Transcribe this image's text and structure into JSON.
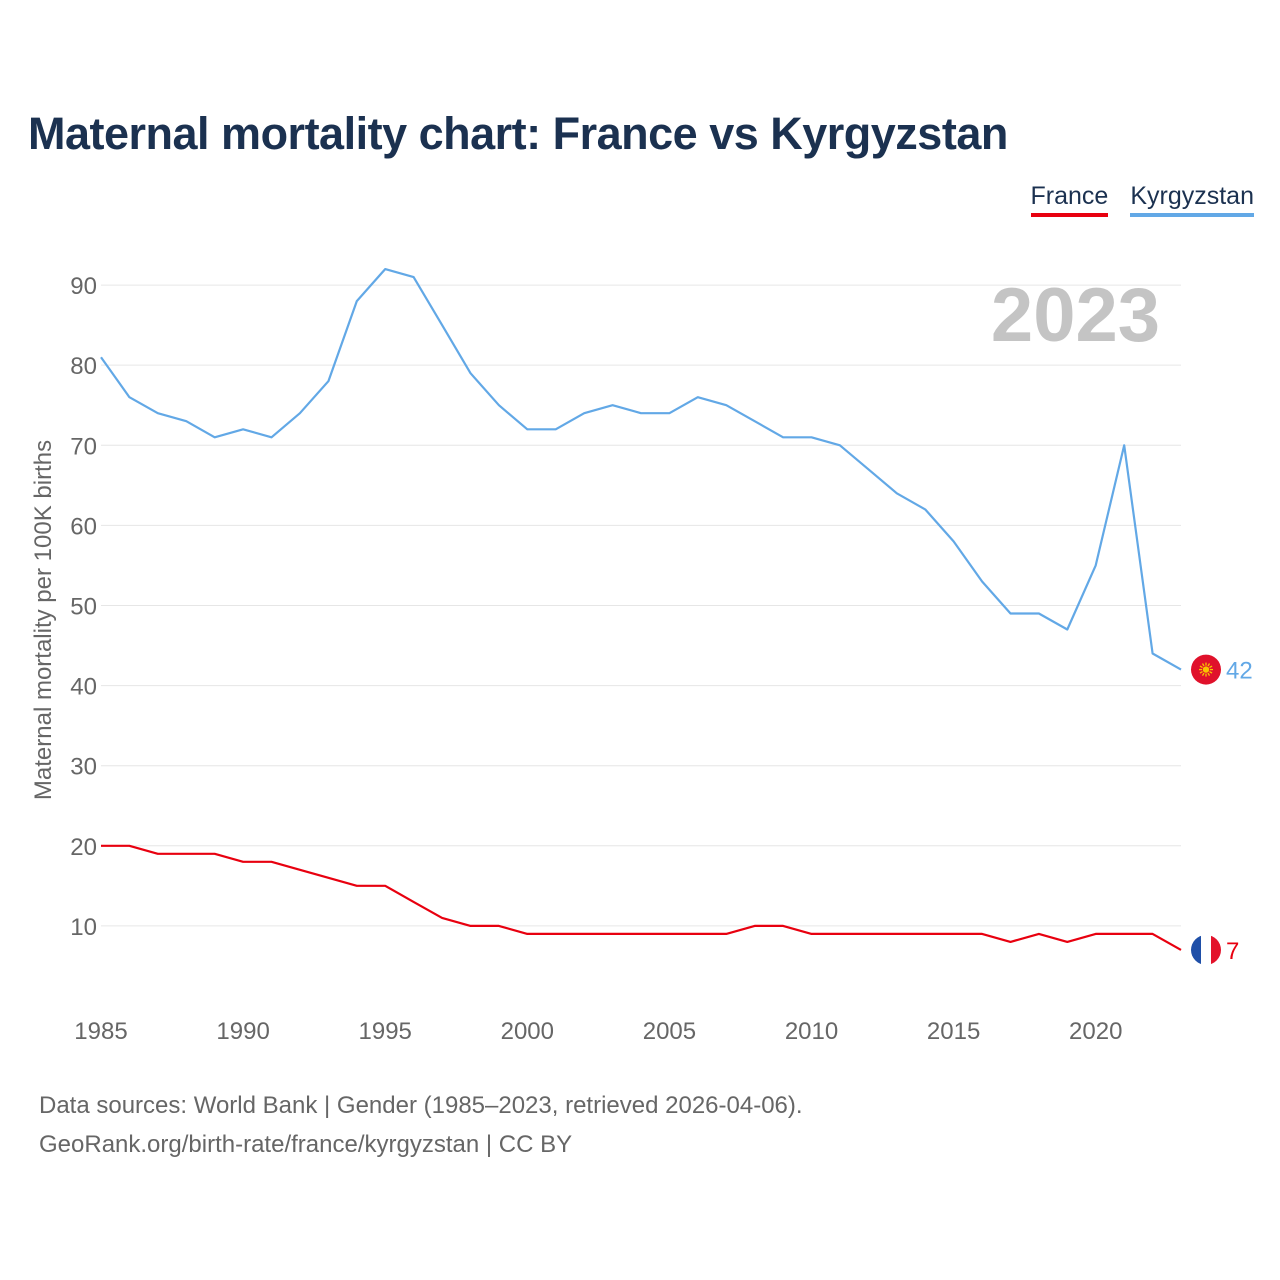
{
  "title": "Maternal mortality chart: France vs Kyrgyzstan",
  "footer": {
    "line1": "Data sources: World Bank | Gender (1985–2023, retrieved 2026-04-06).",
    "line2": "GeoRank.org/birth-rate/france/kyrgyzstan | CC BY"
  },
  "chart_data": {
    "type": "line",
    "title": "Maternal mortality chart: France vs Kyrgyzstan",
    "xlabel": "",
    "ylabel": "Maternal mortality per 100K births",
    "year_label": "2023",
    "xlim": [
      1985,
      2023
    ],
    "ylim": [
      0,
      97
    ],
    "x_ticks": [
      1985,
      1990,
      1995,
      2000,
      2005,
      2010,
      2015,
      2020
    ],
    "y_ticks": [
      10,
      20,
      30,
      40,
      50,
      60,
      70,
      80,
      90
    ],
    "grid": true,
    "legend_position": "top-right",
    "x": [
      1985,
      1986,
      1987,
      1988,
      1989,
      1990,
      1991,
      1992,
      1993,
      1994,
      1995,
      1996,
      1997,
      1998,
      1999,
      2000,
      2001,
      2002,
      2003,
      2004,
      2005,
      2006,
      2007,
      2008,
      2009,
      2010,
      2011,
      2012,
      2013,
      2014,
      2015,
      2016,
      2017,
      2018,
      2019,
      2020,
      2021,
      2022,
      2023
    ],
    "series": [
      {
        "name": "France",
        "color": "#e8000f",
        "flag": "france-flag",
        "end_label": "7",
        "values": [
          20,
          20,
          19,
          19,
          19,
          18,
          18,
          17,
          16,
          15,
          15,
          13,
          11,
          10,
          10,
          9,
          9,
          9,
          9,
          9,
          9,
          9,
          9,
          10,
          10,
          9,
          9,
          9,
          9,
          9,
          9,
          9,
          8,
          9,
          8,
          9,
          9,
          9,
          7
        ]
      },
      {
        "name": "Kyrgyzstan",
        "color": "#62a8e6",
        "flag": "kyrgyzstan-flag",
        "end_label": "42",
        "values": [
          81,
          76,
          74,
          73,
          71,
          72,
          71,
          74,
          78,
          88,
          92,
          91,
          85,
          79,
          75,
          72,
          72,
          74,
          75,
          74,
          74,
          76,
          75,
          73,
          71,
          71,
          70,
          67,
          64,
          62,
          58,
          53,
          49,
          49,
          47,
          55,
          70,
          44,
          42
        ]
      }
    ]
  }
}
